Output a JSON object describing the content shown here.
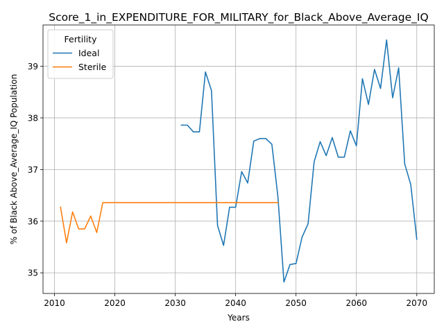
{
  "chart_data": {
    "type": "line",
    "title": "Score_1_in_EXPENDITURE_FOR_MILITARY_for_Black_Above_Average_IQ",
    "xlabel": "Years",
    "ylabel": "% of Black Above_Average_IQ Population",
    "xlim": [
      2008.1,
      2072.9
    ],
    "ylim": [
      34.6,
      39.8
    ],
    "xticks": [
      2010,
      2020,
      2030,
      2040,
      2050,
      2060,
      2070
    ],
    "yticks": [
      35,
      36,
      37,
      38,
      39
    ],
    "grid": true,
    "legend": {
      "title": "Fertility",
      "location": "upper-left"
    },
    "series": [
      {
        "name": "Ideal",
        "color": "#1f77b4",
        "x": [
          2031,
          2032,
          2033,
          2034,
          2035,
          2036,
          2037,
          2038,
          2039,
          2040,
          2041,
          2042,
          2043,
          2044,
          2045,
          2046,
          2047,
          2048,
          2049,
          2050,
          2051,
          2052,
          2053,
          2054,
          2055,
          2056,
          2057,
          2058,
          2059,
          2060,
          2061,
          2062,
          2063,
          2064,
          2065,
          2066,
          2067,
          2068,
          2069,
          2070
        ],
        "y": [
          37.86,
          37.86,
          37.73,
          37.73,
          38.89,
          38.53,
          35.92,
          35.53,
          36.27,
          36.27,
          36.96,
          36.74,
          37.55,
          37.6,
          37.6,
          37.49,
          36.48,
          34.82,
          35.16,
          35.18,
          35.69,
          35.95,
          37.15,
          37.54,
          37.27,
          37.62,
          37.24,
          37.24,
          37.75,
          37.46,
          38.76,
          38.26,
          38.94,
          38.57,
          39.51,
          38.39,
          38.97,
          37.11,
          36.71,
          35.65
        ]
      },
      {
        "name": "Sterile",
        "color": "#ff7f0e",
        "x": [
          2011,
          2012,
          2013,
          2014,
          2015,
          2016,
          2017,
          2018,
          2019,
          2020,
          2021,
          2022,
          2023,
          2024,
          2025,
          2026,
          2027,
          2028,
          2029,
          2030,
          2031,
          2032,
          2033,
          2034,
          2035,
          2036,
          2037,
          2038,
          2039,
          2040,
          2041,
          2042,
          2043,
          2044,
          2045,
          2046,
          2047
        ],
        "y": [
          36.27,
          35.58,
          36.18,
          35.85,
          35.85,
          36.1,
          35.78,
          36.36,
          36.36,
          36.36,
          36.36,
          36.36,
          36.36,
          36.36,
          36.36,
          36.36,
          36.36,
          36.36,
          36.36,
          36.36,
          36.36,
          36.36,
          36.36,
          36.36,
          36.36,
          36.36,
          36.36,
          36.36,
          36.36,
          36.36,
          36.36,
          36.36,
          36.36,
          36.36,
          36.36,
          36.36,
          36.36
        ]
      }
    ]
  }
}
